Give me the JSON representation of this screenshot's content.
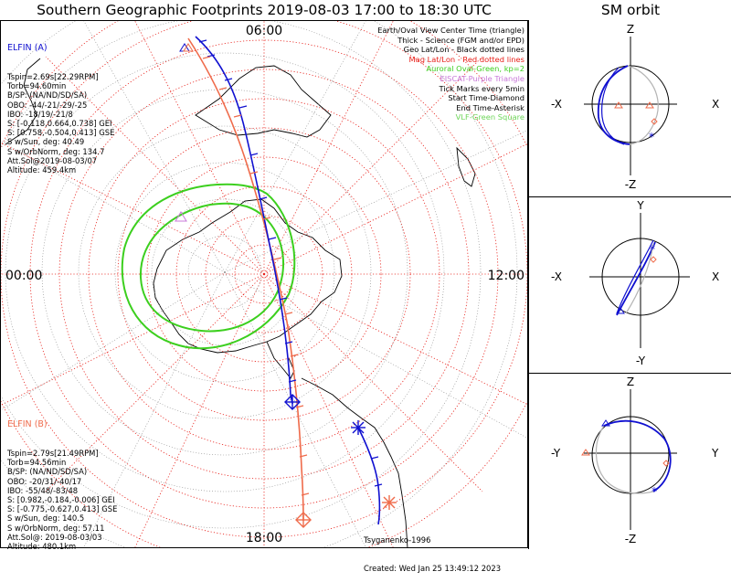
{
  "header": {
    "title": "Southern Geographic Footprints 2019-08-03 17:00 to 18:30 UTC",
    "sm_title": "SM orbit"
  },
  "map": {
    "time_labels": {
      "top": "06:00",
      "left": "00:00",
      "right": "12:00",
      "bottom": "18:00"
    },
    "legend": [
      {
        "text": "Earth/Oval View Center Time (triangle)",
        "color": "#000000"
      },
      {
        "text": "Thick - Science (FGM and/or EPD)",
        "color": "#000000"
      },
      {
        "text": "Geo Lat/Lon - Black dotted lines",
        "color": "#000000"
      },
      {
        "text": "Mag Lat/Lon - Red dotted lines",
        "color": "#e8201a"
      },
      {
        "text": "Auroral Oval-Green, kp=2",
        "color": "#3ccf1e"
      },
      {
        "text": "EISCAT-Purple Triangle",
        "color": "#c878d8"
      },
      {
        "text": "Tick Marks every 5min",
        "color": "#000000"
      },
      {
        "text": "Start Time-Diamond",
        "color": "#000000"
      },
      {
        "text": "End Time-Asterisk",
        "color": "#000000"
      },
      {
        "text": "VLF-Green Square",
        "color": "#6ed65a"
      }
    ],
    "elfin_a": {
      "name": "ELFIN (A)",
      "color": "#1010d0",
      "lines": [
        "Tspin=2.69s[22.29RPM]",
        "Torb=94.60min",
        "B/SP: (NA/ND/SD/SA)",
        "OBO: -44/-21/-29/-25",
        "IBO: -18/19/-21/8",
        "S: [-0.118,0.664,0.738] GEI",
        "S: [0.758,-0.504,0.413] GSE",
        "S w/Sun, deg: 40.49",
        "S w/OrbNorm, deg: 134.7",
        "Att.Sol@2019-08-03/07",
        "Altitude: 459.4km"
      ]
    },
    "elfin_b": {
      "name": "ELFIN (B)",
      "color": "#ef6b4b",
      "lines": [
        "Tspin=2.79s[21.49RPM]",
        "Torb=94.56min",
        "B/SP: (NA/ND/SD/SA)",
        "OBO: -20/31/-40/17",
        "IBO: -55/48/-83/48",
        "S: [0.982,-0.184,-0.006] GEI",
        "S: [-0.775,-0.627,0.413] GSE",
        "S w/Sun, deg: 140.5",
        "S w/OrbNorm, deg: 57.11",
        "Att.Sol@: 2019-08-03/03",
        "Altitude: 480.1km"
      ]
    },
    "credits": {
      "author": "Tsyganenko-1996",
      "created": "Created: Wed Jan 25 13:49:12 2023"
    }
  },
  "sm_panels": [
    {
      "top": "Z",
      "bottom": "-Z",
      "left": "-X",
      "right": "X"
    },
    {
      "top": "Y",
      "bottom": "-Y",
      "left": "-X",
      "right": "X"
    },
    {
      "top": "Z",
      "bottom": "-Z",
      "left": "-Y",
      "right": "Y"
    }
  ],
  "colors": {
    "elfin_a": "#1010d0",
    "elfin_b": "#ef6b4b",
    "grid_mag": "#e8201a",
    "oval": "#3ccf1e",
    "orbit_gray": "#b4b4b4"
  }
}
